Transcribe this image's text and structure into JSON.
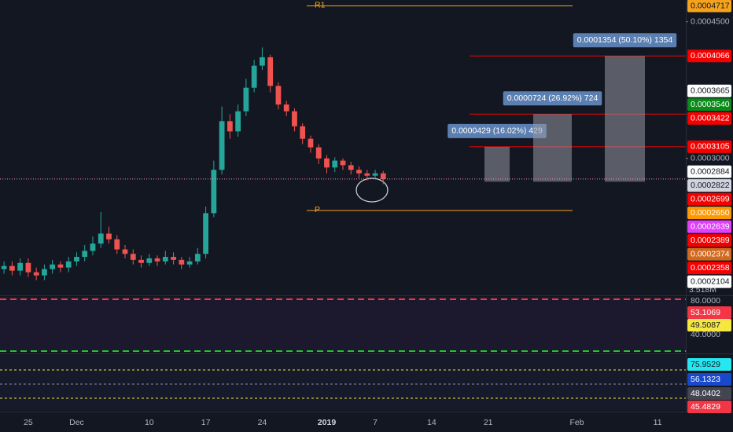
{
  "chart_data": {
    "type": "candlestick",
    "categories": [
      null,
      null,
      null,
      "25",
      null,
      null,
      null,
      null,
      null,
      "Dec",
      null,
      null,
      null,
      null,
      null,
      null,
      null,
      null,
      "10",
      null,
      null,
      null,
      null,
      null,
      null,
      "17",
      null,
      null,
      null,
      null,
      null,
      null,
      "24",
      null,
      null,
      null,
      null,
      null,
      null,
      null,
      "2019",
      null,
      null,
      null,
      null,
      null,
      "7",
      null,
      null,
      null,
      null,
      null,
      null,
      "14",
      null,
      null,
      null,
      null,
      null,
      null,
      "21",
      null,
      null,
      null,
      null,
      null,
      null,
      null,
      null,
      null,
      null,
      "Feb",
      null,
      null,
      null,
      null,
      null,
      null,
      null,
      null,
      null,
      "11",
      null,
      null,
      null
    ],
    "open": [
      0.000216,
      0.000218,
      0.000215,
      0.00022,
      0.000214,
      0.000212,
      0.000216,
      0.000219,
      0.000217,
      0.000221,
      0.000224,
      0.000228,
      0.000233,
      0.00024,
      0.000236,
      0.000229,
      0.000226,
      0.000222,
      0.00022,
      0.000223,
      0.000221,
      0.000224,
      0.000222,
      0.000219,
      0.000221,
      0.000226,
      0.000255,
      0.00029,
      0.000335,
      0.000325,
      0.000345,
      0.00037,
      0.000395,
      0.000405,
      0.000372,
      0.000352,
      0.000345,
      0.00033,
      0.000318,
      0.00031,
      0.0003,
      0.000292,
      0.000298,
      0.000294,
      0.00029,
      0.000287,
      0.000285,
      0.000287,
      null,
      null,
      null,
      null,
      null,
      null,
      null,
      null,
      null,
      null,
      null,
      null,
      null,
      null,
      null,
      null,
      null,
      null,
      null,
      null,
      null,
      null,
      null,
      null,
      null,
      null,
      null,
      null,
      null,
      null,
      null,
      null,
      null,
      null,
      null,
      null,
      null
    ],
    "high": [
      0.000221,
      0.000221,
      0.000223,
      0.000223,
      0.000217,
      0.000219,
      0.000222,
      0.000221,
      0.000224,
      0.000227,
      0.000232,
      0.000238,
      0.000256,
      0.000245,
      0.000239,
      0.000232,
      0.000229,
      0.000225,
      0.000226,
      0.000225,
      0.000228,
      0.000227,
      0.000224,
      0.000224,
      0.00023,
      0.00026,
      0.000298,
      0.00035,
      0.000342,
      0.000352,
      0.00038,
      0.000402,
      0.000417,
      0.000408,
      0.000376,
      0.000356,
      0.000348,
      0.000333,
      0.000321,
      0.000313,
      0.000303,
      0.000301,
      0.0003,
      0.000297,
      0.000293,
      0.00029,
      0.00029,
      0.000289,
      null,
      null,
      null,
      null,
      null,
      null,
      null,
      null,
      null,
      null,
      null,
      null,
      null,
      null,
      null,
      null,
      null,
      null,
      null,
      null,
      null,
      null,
      null,
      null,
      null,
      null,
      null,
      null,
      null,
      null,
      null,
      null,
      null,
      null,
      null,
      null,
      null
    ],
    "low": [
      0.000213,
      0.000212,
      0.000212,
      0.000211,
      0.000209,
      0.000209,
      0.000213,
      0.000214,
      0.000214,
      0.000218,
      0.000221,
      0.000225,
      0.00023,
      0.000233,
      0.000226,
      0.000223,
      0.000219,
      0.000217,
      0.000218,
      0.000218,
      0.000219,
      0.000219,
      0.000216,
      0.000217,
      0.000219,
      0.000223,
      0.000252,
      0.000286,
      0.000318,
      0.00032,
      0.00034,
      0.000365,
      0.00039,
      0.000365,
      0.000347,
      0.00034,
      0.000325,
      0.000313,
      0.000305,
      0.000295,
      0.000287,
      0.000288,
      0.00029,
      0.000286,
      0.000283,
      0.000281,
      0.000282,
      0.000278,
      null,
      null,
      null,
      null,
      null,
      null,
      null,
      null,
      null,
      null,
      null,
      null,
      null,
      null,
      null,
      null,
      null,
      null,
      null,
      null,
      null,
      null,
      null,
      null,
      null,
      null,
      null,
      null,
      null,
      null,
      null,
      null,
      null,
      null,
      null,
      null,
      null
    ],
    "close": [
      0.000218,
      0.000215,
      0.00022,
      0.000214,
      0.000212,
      0.000216,
      0.000219,
      0.000217,
      0.000221,
      0.000224,
      0.000228,
      0.000233,
      0.00024,
      0.000236,
      0.000229,
      0.000226,
      0.000222,
      0.00022,
      0.000223,
      0.000221,
      0.000224,
      0.000222,
      0.000219,
      0.000221,
      0.000226,
      0.000255,
      0.00029,
      0.000335,
      0.000325,
      0.000345,
      0.00037,
      0.000395,
      0.000405,
      0.000372,
      0.000352,
      0.000345,
      0.00033,
      0.000318,
      0.00031,
      0.0003,
      0.000292,
      0.000298,
      0.000294,
      0.00029,
      0.000287,
      0.000285,
      0.000287,
      0.0002822,
      null,
      null,
      null,
      null,
      null,
      null,
      null,
      null,
      null,
      null,
      null,
      null,
      null,
      null,
      null,
      null,
      null,
      null,
      null,
      null,
      null,
      null,
      null,
      null,
      null,
      null,
      null,
      null,
      null,
      null,
      null,
      null,
      null,
      null,
      null,
      null,
      null
    ],
    "up_color": "#26a69a",
    "down_color": "#ef5350",
    "log_scale": true,
    "ylim": [
      0.0002003,
      0.00048
    ],
    "yticks": [
      {
        "value": 0.00045,
        "label": "0.0004500"
      },
      {
        "value": 0.0003,
        "label": "0.0003000"
      }
    ],
    "price_labels": [
      {
        "value": 0.0004717,
        "label": "0.0004717",
        "color": "#f7a21b",
        "text_color": "#131722"
      },
      {
        "value": 0.0004066,
        "label": "0.0004066",
        "color": "#f50000",
        "text_color": "#ffffff"
      },
      {
        "value": 0.0003665,
        "label": "0.0003665",
        "color": "#ffffff",
        "text_color": "#131722"
      },
      {
        "value": 0.000354,
        "label": "0.0003540",
        "color": "#0b8a1a",
        "text_color": "#ffffff"
      },
      {
        "value": 0.0003422,
        "label": "0.0003422",
        "color": "#f50000",
        "text_color": "#ffffff"
      },
      {
        "value": 0.0003105,
        "label": "0.0003105",
        "color": "#f50000",
        "text_color": "#ffffff"
      },
      {
        "value": 0.0002884,
        "label": "0.0002884",
        "color": "#ffffff",
        "text_color": "#131722"
      },
      {
        "value": 0.0002822,
        "label": "0.0002822",
        "color": "#d1d4dc",
        "text_color": "#131722"
      },
      {
        "value": 0.0002699,
        "label": "0.0002699",
        "color": "#f50000",
        "text_color": "#ffffff"
      },
      {
        "value": 0.000265,
        "label": "0.0002650",
        "color": "#ff9800",
        "text_color": "#ffffff"
      },
      {
        "value": 0.0002639,
        "label": "0.0002639",
        "color": "#e040fb",
        "text_color": "#ffffff"
      },
      {
        "value": 0.0002389,
        "label": "0.0002389",
        "color": "#f50000",
        "text_color": "#ffffff"
      },
      {
        "value": 0.0002374,
        "label": "0.0002374",
        "color": "#d2691e",
        "text_color": "#ffffff"
      },
      {
        "value": 0.0002358,
        "label": "0.0002358",
        "color": "#f50000",
        "text_color": "#ffffff"
      },
      {
        "value": 0.0002104,
        "label": "0.0002104",
        "color": "#ffffff",
        "text_color": "#131722"
      }
    ],
    "levels": [
      {
        "label": "R1",
        "value": 0.0004717,
        "color": "#f7a21b"
      },
      {
        "label": "P",
        "value": 0.000257,
        "color": "#f7a21b"
      }
    ],
    "target_lines": [
      0.0003105,
      0.0003422,
      0.0004066
    ],
    "target_color": "#f50000",
    "measures": [
      {
        "label": "0.0000429 (16.02%) 429",
        "low": 0.00028,
        "high": 0.0003105
      },
      {
        "label": "0.0000724 (26.92%) 724",
        "low": 0.00028,
        "high": 0.0003422
      },
      {
        "label": "0.0001354 (50.10%) 1354",
        "low": 0.00028,
        "high": 0.0004066
      }
    ],
    "volume_label": "3.518M"
  },
  "indicator_panes": [
    {
      "labels": [
        {
          "label": "80.0000"
        },
        {
          "label": "53.1069",
          "color": "#f23645"
        },
        {
          "label": "49.5087",
          "color": "#f5e642"
        },
        {
          "label": "40.0000"
        }
      ]
    },
    {
      "labels": [
        {
          "label": "75.9529",
          "color": "#26e7f0"
        },
        {
          "label": "56.1323",
          "color": "#1848cc"
        },
        {
          "label": "48.0402",
          "color": "#434651"
        },
        {
          "label": "45.4829",
          "color": "#f23645"
        }
      ]
    }
  ]
}
